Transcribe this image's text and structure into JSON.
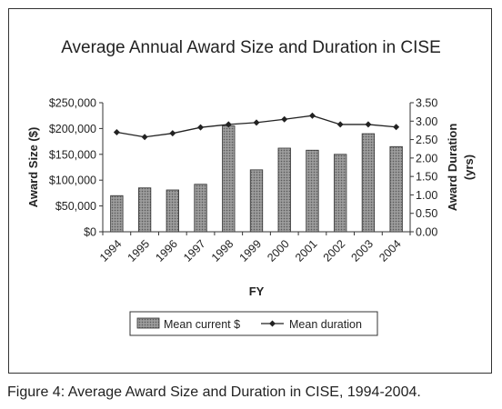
{
  "caption": "Figure 4: Average Award Size and Duration in CISE, 1994-2004.",
  "chart_data": {
    "type": "bar+line",
    "title": "Average Annual Award Size and Duration in CISE",
    "xlabel": "FY",
    "ylabel_left": "Award Size ($)",
    "ylabel_right": "Award Duration (yrs)",
    "categories": [
      "1994",
      "1995",
      "1996",
      "1997",
      "1998",
      "1999",
      "2000",
      "2001",
      "2002",
      "2003",
      "2004"
    ],
    "series": [
      {
        "name": "Mean current $",
        "type": "bar",
        "axis": "left",
        "values": [
          70000,
          85000,
          81000,
          92000,
          205000,
          120000,
          162000,
          158000,
          150000,
          190000,
          165000
        ]
      },
      {
        "name": "Mean duration",
        "type": "line",
        "axis": "right",
        "values": [
          2.7,
          2.57,
          2.67,
          2.83,
          2.91,
          2.96,
          3.05,
          3.15,
          2.91,
          2.91,
          2.84
        ]
      }
    ],
    "ylim_left": [
      0,
      250000
    ],
    "ylim_right": [
      0,
      3.5
    ],
    "yticks_left": [
      "$0",
      "$50,000",
      "$100,000",
      "$150,000",
      "$200,000",
      "$250,000"
    ],
    "yticks_right": [
      "0.00",
      "0.50",
      "1.00",
      "1.50",
      "2.00",
      "2.50",
      "3.00",
      "3.50"
    ],
    "legend_position": "bottom",
    "grid": false,
    "colors": {
      "bar_fill": "#9a9a9a",
      "line": "#222222",
      "frame": "#333333"
    }
  }
}
